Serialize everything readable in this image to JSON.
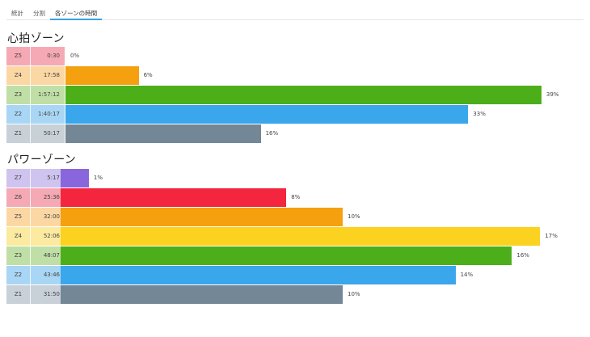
{
  "tabs": [
    {
      "label": "統計",
      "active": false
    },
    {
      "label": "分割",
      "active": false
    },
    {
      "label": "各ゾーンの時間",
      "active": true
    }
  ],
  "heart_rate": {
    "title": "心拍ゾーン",
    "zones": [
      {
        "zone": "Z5",
        "time": "0:30",
        "percent": 0,
        "percent_label": "0%",
        "label_color": "#f5a9b4",
        "bar_color": "#f5a9b4"
      },
      {
        "zone": "Z4",
        "time": "17:58",
        "percent": 6,
        "percent_label": "6%",
        "label_color": "#fbd7a4",
        "bar_color": "#f5a00f"
      },
      {
        "zone": "Z3",
        "time": "1:57:12",
        "percent": 39,
        "percent_label": "39%",
        "label_color": "#bfdfa6",
        "bar_color": "#4caf1a"
      },
      {
        "zone": "Z2",
        "time": "1:40:17",
        "percent": 33,
        "percent_label": "33%",
        "label_color": "#a9d6f5",
        "bar_color": "#3aa6ec"
      },
      {
        "zone": "Z1",
        "time": "50:17",
        "percent": 16,
        "percent_label": "16%",
        "label_color": "#c8d0d8",
        "bar_color": "#738796"
      }
    ]
  },
  "power": {
    "title": "パワーゾーン",
    "zones": [
      {
        "zone": "Z7",
        "time": "5:17",
        "percent": 1,
        "percent_label": "1%",
        "label_color": "#cfc3ef",
        "bar_color": "#8a66dd"
      },
      {
        "zone": "Z6",
        "time": "25:36",
        "percent": 8,
        "percent_label": "8%",
        "label_color": "#f5a9b4",
        "bar_color": "#f4253e"
      },
      {
        "zone": "Z5",
        "time": "32:00",
        "percent": 10,
        "percent_label": "10%",
        "label_color": "#fbd7a4",
        "bar_color": "#f5a00f"
      },
      {
        "zone": "Z4",
        "time": "52:06",
        "percent": 17,
        "percent_label": "17%",
        "label_color": "#fbeaa0",
        "bar_color": "#fad21f"
      },
      {
        "zone": "Z3",
        "time": "48:07",
        "percent": 16,
        "percent_label": "16%",
        "label_color": "#bfdfa6",
        "bar_color": "#4caf1a"
      },
      {
        "zone": "Z2",
        "time": "43:46",
        "percent": 14,
        "percent_label": "14%",
        "label_color": "#a9d6f5",
        "bar_color": "#3aa6ec"
      },
      {
        "zone": "Z1",
        "time": "31:50",
        "percent": 10,
        "percent_label": "10%",
        "label_color": "#c8d0d8",
        "bar_color": "#738796"
      }
    ]
  }
}
